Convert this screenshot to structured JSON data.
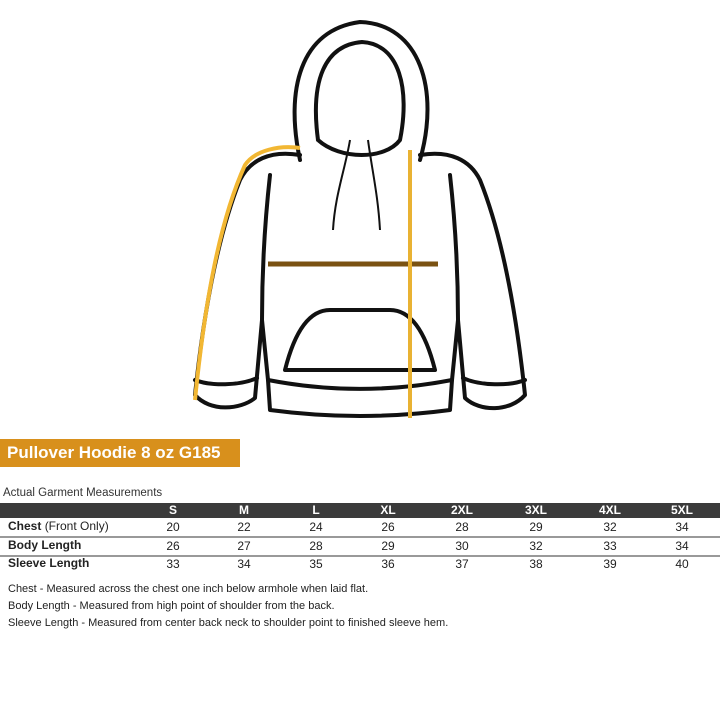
{
  "title": "Pullover Hoodie 8 oz G185",
  "caption": "Actual Garment Measurements",
  "colors": {
    "banner": "#d8901c",
    "header": "#3b3b3b",
    "sleeve_line": "#f2b733",
    "chest_line": "#7a5212",
    "body_line": "#e9b233"
  },
  "sizes": [
    "S",
    "M",
    "L",
    "XL",
    "2XL",
    "3XL",
    "4XL",
    "5XL"
  ],
  "rows": [
    {
      "label": "Chest",
      "sublabel": "(Front Only)",
      "values": [
        "20",
        "22",
        "24",
        "26",
        "28",
        "29",
        "32",
        "34"
      ]
    },
    {
      "label": "Body Length",
      "sublabel": "",
      "values": [
        "26",
        "27",
        "28",
        "29",
        "30",
        "32",
        "33",
        "34"
      ]
    },
    {
      "label": "Sleeve Length",
      "sublabel": "",
      "values": [
        "33",
        "34",
        "35",
        "36",
        "37",
        "38",
        "39",
        "40"
      ]
    }
  ],
  "notes": [
    "Chest - Measured across the chest one inch below armhole when laid flat.",
    "Body Length - Measured from high point of shoulder from the back.",
    "Sleeve Length - Measured from center back neck to shoulder point to finished sleeve hem."
  ]
}
